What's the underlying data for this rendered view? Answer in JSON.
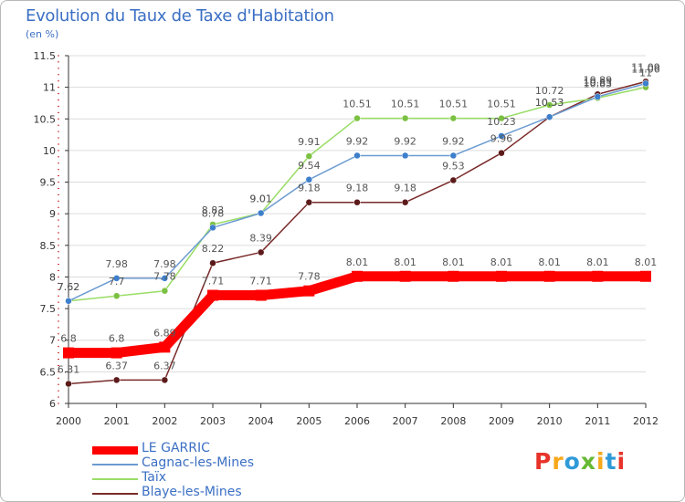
{
  "colors": {
    "title": "#3b6fc4",
    "axis": "#333333",
    "grid": "#dcdcdc",
    "label_text": "#555555"
  },
  "chart_data": {
    "type": "line",
    "title": "Evolution du Taux de Taxe d'Habitation",
    "subtitle": "(en %)",
    "xlabel": "",
    "ylabel": "",
    "x": [
      "2000",
      "2001",
      "2002",
      "2003",
      "2004",
      "2005",
      "2006",
      "2007",
      "2008",
      "2009",
      "2010",
      "2011",
      "2012"
    ],
    "ylim": [
      6,
      11.5
    ],
    "yticks": [
      "6",
      "6.5",
      "7",
      "7.5",
      "8",
      "8.5",
      "9",
      "9.5",
      "10",
      "10.5",
      "11",
      "11.5"
    ],
    "grid": "horizontal",
    "legend_position": "bottom-left",
    "series": [
      {
        "name": "LE GARRIC",
        "color": "#ff0000",
        "style": "thick",
        "values": [
          6.8,
          6.8,
          6.89,
          7.71,
          7.71,
          7.78,
          8.01,
          8.01,
          8.01,
          8.01,
          8.01,
          8.01,
          8.01
        ],
        "labels": [
          "6.8",
          "6.8",
          "6.89",
          "7.71",
          "7.71",
          "7.78",
          "8.01",
          "8.01",
          "8.01",
          "8.01",
          "8.01",
          "8.01",
          "8.01"
        ]
      },
      {
        "name": "Cagnac-les-Mines",
        "color": "#6c9bd2",
        "marker": "#3e7fcc",
        "values": [
          7.62,
          7.98,
          7.98,
          8.78,
          9.01,
          9.54,
          9.92,
          9.92,
          9.92,
          10.23,
          10.53,
          10.85,
          11.06
        ],
        "labels": [
          "7.62",
          "7.98",
          "7.98",
          "8.78",
          "9.01",
          "9.54",
          "9.92",
          "9.92",
          "9.92",
          "10.23",
          "10.53",
          "10.85",
          "11.06"
        ]
      },
      {
        "name": "Taïx",
        "color": "#99dd66",
        "marker": "#7bc142",
        "values": [
          7.62,
          7.7,
          7.78,
          8.83,
          9.01,
          9.91,
          10.51,
          10.51,
          10.51,
          10.51,
          10.72,
          10.83,
          11.0
        ],
        "labels": [
          "7.62",
          "7.7",
          "7.78",
          "8.83",
          "9.01",
          "9.91",
          "10.51",
          "10.51",
          "10.51",
          "10.51",
          "10.72",
          "10.83",
          "11"
        ]
      },
      {
        "name": "Blaye-les-Mines",
        "color": "#7a2a2a",
        "marker": "#5c1a1a",
        "values": [
          6.31,
          6.37,
          6.37,
          8.22,
          8.39,
          9.18,
          9.18,
          9.18,
          9.53,
          9.96,
          10.53,
          10.89,
          11.09
        ],
        "labels": [
          "6.31",
          "6.37",
          "6.37",
          "8.22",
          "8.39",
          "9.18",
          "9.18",
          "9.18",
          "9.53",
          "9.96",
          "10.53",
          "10.89",
          "11.09"
        ]
      }
    ]
  },
  "legend": {
    "items": [
      {
        "label": "LE GARRIC",
        "color": "#ff0000"
      },
      {
        "label": "Cagnac-les-Mines",
        "color": "#6c9bd2"
      },
      {
        "label": "Taïx",
        "color": "#99dd66"
      },
      {
        "label": "Blaye-les-Mines",
        "color": "#7a2a2a"
      }
    ]
  },
  "logo": {
    "letters": [
      {
        "ch": "P",
        "color": "#e8332a"
      },
      {
        "ch": "r",
        "color": "#f7a81b"
      },
      {
        "ch": "o",
        "color": "#2f9ad8"
      },
      {
        "ch": "x",
        "color": "#66b832"
      },
      {
        "ch": "i",
        "color": "#f7a81b"
      },
      {
        "ch": "t",
        "color": "#2f9ad8"
      },
      {
        "ch": "i",
        "color": "#e8332a"
      }
    ]
  }
}
